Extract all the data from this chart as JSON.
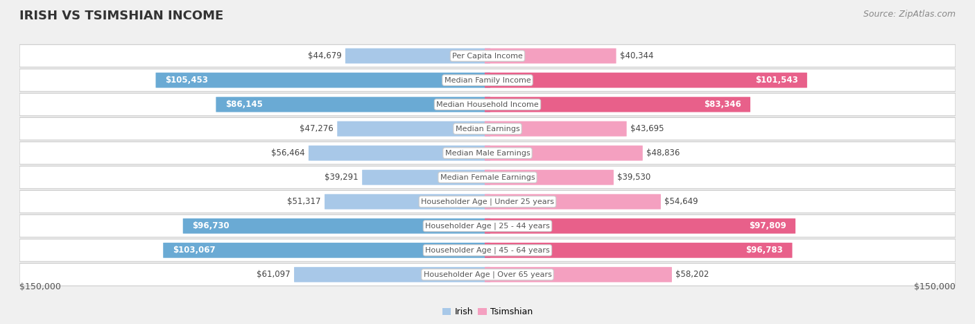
{
  "title": "IRISH VS TSIMSHIAN INCOME",
  "source": "Source: ZipAtlas.com",
  "categories": [
    "Per Capita Income",
    "Median Family Income",
    "Median Household Income",
    "Median Earnings",
    "Median Male Earnings",
    "Median Female Earnings",
    "Householder Age | Under 25 years",
    "Householder Age | 25 - 44 years",
    "Householder Age | 45 - 64 years",
    "Householder Age | Over 65 years"
  ],
  "irish_values": [
    44679,
    105453,
    86145,
    47276,
    56464,
    39291,
    51317,
    96730,
    103067,
    61097
  ],
  "tsimshian_values": [
    40344,
    101543,
    83346,
    43695,
    48836,
    39530,
    54649,
    97809,
    96783,
    58202
  ],
  "irish_labels": [
    "$44,679",
    "$105,453",
    "$86,145",
    "$47,276",
    "$56,464",
    "$39,291",
    "$51,317",
    "$96,730",
    "$103,067",
    "$61,097"
  ],
  "tsimshian_labels": [
    "$40,344",
    "$101,543",
    "$83,346",
    "$43,695",
    "$48,836",
    "$39,530",
    "$54,649",
    "$97,809",
    "$96,783",
    "$58,202"
  ],
  "irish_color_light": "#A8C8E8",
  "irish_color_dark": "#6AAAD4",
  "tsimshian_color_light": "#F4A0C0",
  "tsimshian_color_dark": "#E8608A",
  "label_dark_threshold": 70000,
  "background_color": "#f0f0f0",
  "row_bg_color": "#ffffff",
  "row_border_color": "#cccccc",
  "max_value": 150000,
  "center_label_bg": "#ffffff",
  "center_label_border": "#cccccc",
  "title_fontsize": 13,
  "source_fontsize": 9,
  "bar_label_fontsize": 8.5,
  "category_fontsize": 8,
  "axis_label_fontsize": 9,
  "legend_fontsize": 9
}
